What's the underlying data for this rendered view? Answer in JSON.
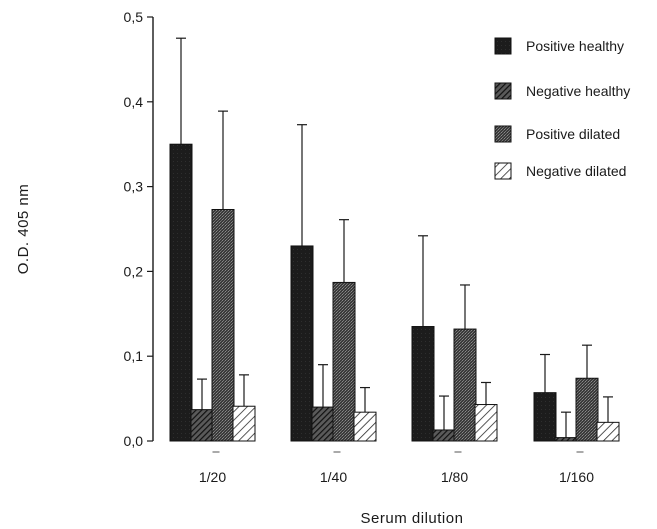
{
  "chart_data": {
    "type": "bar",
    "title": "",
    "xlabel": "Serum  dilution",
    "ylabel": "O.D. 405 nm",
    "ylim": [
      0,
      0.5
    ],
    "yticks": [
      0,
      0.1,
      0.2,
      0.3,
      0.4,
      0.5
    ],
    "ytick_labels": [
      "0,0",
      "0,1",
      "0,2",
      "0,3",
      "0,4",
      "0,5"
    ],
    "categories": [
      "1/20",
      "1/40",
      "1/80",
      "1/160"
    ],
    "series": [
      {
        "name": "Positive healthy",
        "values": [
          0.35,
          0.23,
          0.135,
          0.057
        ],
        "errors": [
          0.125,
          0.143,
          0.107,
          0.045
        ],
        "color": "#1c1c1c",
        "pattern": "solid-dark"
      },
      {
        "name": "Negative healthy",
        "values": [
          0.037,
          0.04,
          0.013,
          0.004
        ],
        "errors": [
          0.036,
          0.05,
          0.04,
          0.03
        ],
        "color": "#2a2a2a",
        "pattern": "dense-diagonal"
      },
      {
        "name": "Positive dilated",
        "values": [
          0.273,
          0.187,
          0.132,
          0.074
        ],
        "errors": [
          0.116,
          0.074,
          0.052,
          0.039
        ],
        "color": "#4a4a4a",
        "pattern": "stipple"
      },
      {
        "name": "Negative dilated",
        "values": [
          0.041,
          0.034,
          0.043,
          0.022
        ],
        "errors": [
          0.037,
          0.029,
          0.026,
          0.03
        ],
        "color": "#555555",
        "pattern": "light-diagonal"
      }
    ],
    "legend_position": "top-right",
    "grid": false,
    "error_bars": "upper"
  }
}
